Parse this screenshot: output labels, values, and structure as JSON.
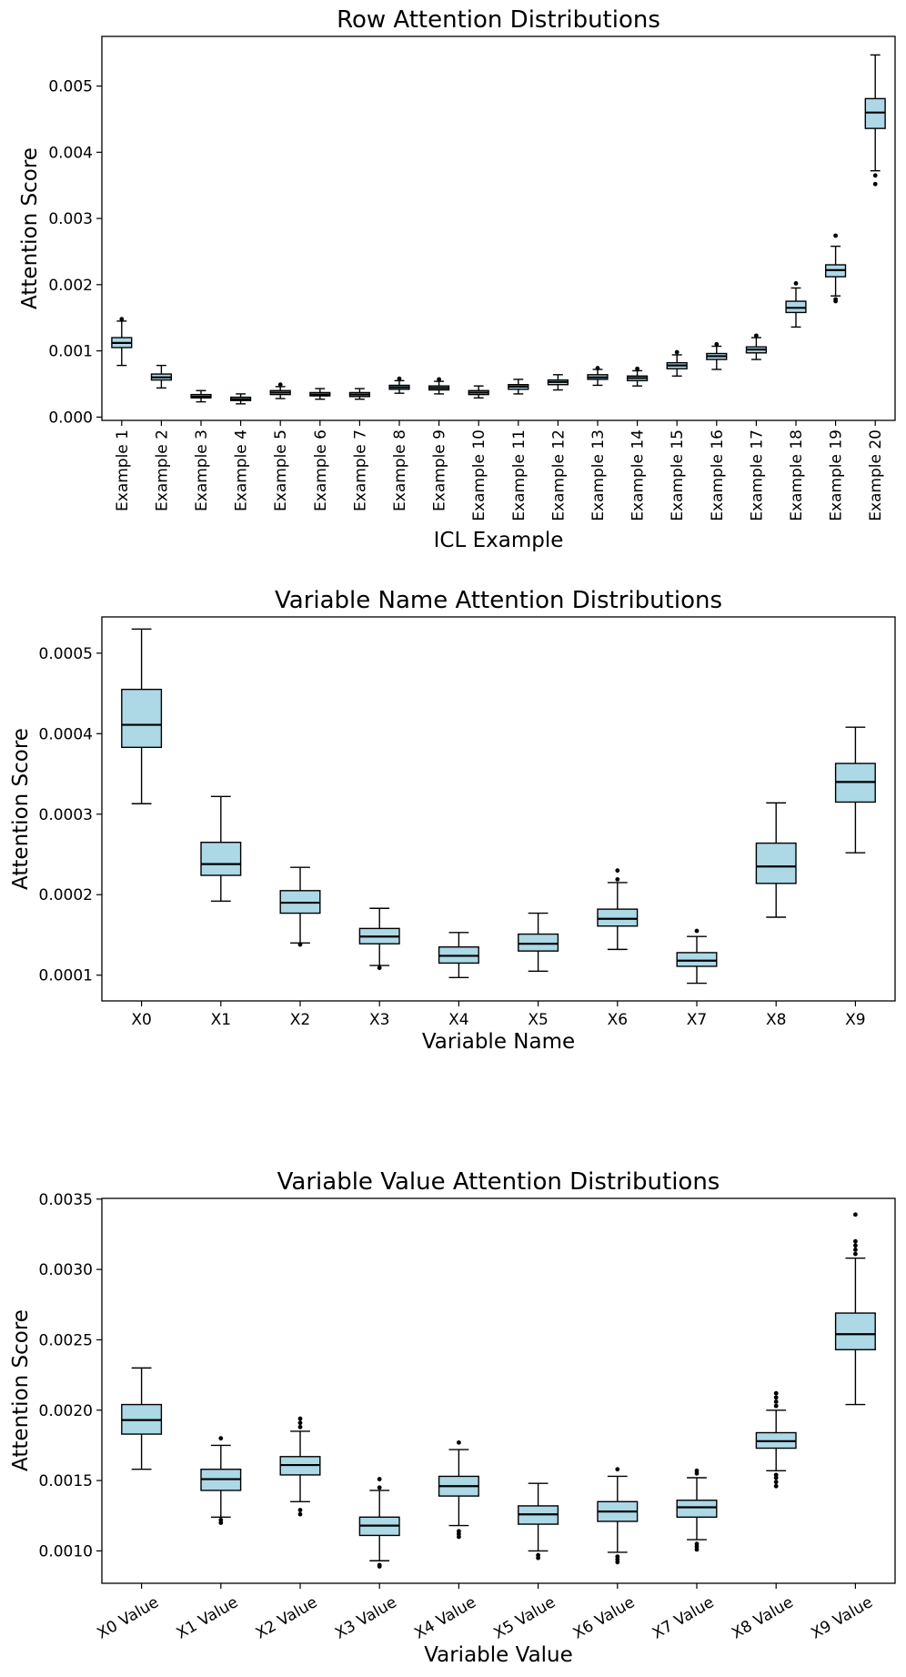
{
  "chart_data": [
    {
      "type": "box",
      "title": "Row Attention Distributions",
      "xlabel": "ICL Example",
      "ylabel": "Attention Score",
      "ylim": [
        -5e-05,
        0.00575
      ],
      "yticks": [
        0.0,
        0.001,
        0.002,
        0.003,
        0.004,
        0.005
      ],
      "ytick_labels": [
        "0.000",
        "0.001",
        "0.002",
        "0.003",
        "0.004",
        "0.005"
      ],
      "xtick_rotation": "vertical",
      "box_color": "#add8e6",
      "categories": [
        "Example 1",
        "Example 2",
        "Example 3",
        "Example 4",
        "Example 5",
        "Example 6",
        "Example 7",
        "Example 8",
        "Example 9",
        "Example 10",
        "Example 11",
        "Example 12",
        "Example 13",
        "Example 14",
        "Example 15",
        "Example 16",
        "Example 17",
        "Example 18",
        "Example 19",
        "Example 20"
      ],
      "boxes": [
        {
          "whislo": 0.00078,
          "q1": 0.00105,
          "med": 0.00112,
          "q3": 0.0012,
          "whishi": 0.00145,
          "fliers": [
            0.00148
          ]
        },
        {
          "whislo": 0.00044,
          "q1": 0.00056,
          "med": 0.0006,
          "q3": 0.00065,
          "whishi": 0.00078,
          "fliers": []
        },
        {
          "whislo": 0.00023,
          "q1": 0.00029,
          "med": 0.00031,
          "q3": 0.00034,
          "whishi": 0.0004,
          "fliers": []
        },
        {
          "whislo": 0.0002,
          "q1": 0.00025,
          "med": 0.00027,
          "q3": 0.0003,
          "whishi": 0.00035,
          "fliers": []
        },
        {
          "whislo": 0.00028,
          "q1": 0.00034,
          "med": 0.00037,
          "q3": 0.0004,
          "whishi": 0.00046,
          "fliers": [
            0.00049
          ]
        },
        {
          "whislo": 0.00027,
          "q1": 0.00032,
          "med": 0.00034,
          "q3": 0.00037,
          "whishi": 0.00043,
          "fliers": []
        },
        {
          "whislo": 0.00027,
          "q1": 0.00031,
          "med": 0.00034,
          "q3": 0.00037,
          "whishi": 0.00043,
          "fliers": []
        },
        {
          "whislo": 0.00036,
          "q1": 0.00042,
          "med": 0.00045,
          "q3": 0.00048,
          "whishi": 0.00055,
          "fliers": [
            0.00058
          ]
        },
        {
          "whislo": 0.00035,
          "q1": 0.00041,
          "med": 0.00044,
          "q3": 0.00047,
          "whishi": 0.00054,
          "fliers": [
            0.00057
          ]
        },
        {
          "whislo": 0.00029,
          "q1": 0.00034,
          "med": 0.00037,
          "q3": 0.0004,
          "whishi": 0.00047,
          "fliers": []
        },
        {
          "whislo": 0.00035,
          "q1": 0.00042,
          "med": 0.00046,
          "q3": 0.00049,
          "whishi": 0.00057,
          "fliers": []
        },
        {
          "whislo": 0.00041,
          "q1": 0.00049,
          "med": 0.00053,
          "q3": 0.00056,
          "whishi": 0.00064,
          "fliers": []
        },
        {
          "whislo": 0.00048,
          "q1": 0.00057,
          "med": 0.0006,
          "q3": 0.00064,
          "whishi": 0.00072,
          "fliers": [
            0.00074
          ]
        },
        {
          "whislo": 0.00047,
          "q1": 0.00055,
          "med": 0.00059,
          "q3": 0.00062,
          "whishi": 0.0007,
          "fliers": [
            0.00073
          ]
        },
        {
          "whislo": 0.00062,
          "q1": 0.00073,
          "med": 0.00078,
          "q3": 0.00082,
          "whishi": 0.00094,
          "fliers": [
            0.00098
          ]
        },
        {
          "whislo": 0.00072,
          "q1": 0.00087,
          "med": 0.00092,
          "q3": 0.00096,
          "whishi": 0.00107,
          "fliers": [
            0.0011
          ]
        },
        {
          "whislo": 0.00087,
          "q1": 0.00097,
          "med": 0.00102,
          "q3": 0.00106,
          "whishi": 0.0012,
          "fliers": [
            0.00123
          ]
        },
        {
          "whislo": 0.00136,
          "q1": 0.00158,
          "med": 0.00165,
          "q3": 0.00175,
          "whishi": 0.00195,
          "fliers": [
            0.00202
          ]
        },
        {
          "whislo": 0.00183,
          "q1": 0.00212,
          "med": 0.00222,
          "q3": 0.0023,
          "whishi": 0.00258,
          "fliers": [
            0.00175,
            0.00178,
            0.00274
          ]
        },
        {
          "whislo": 0.00372,
          "q1": 0.00436,
          "med": 0.0046,
          "q3": 0.00481,
          "whishi": 0.00547,
          "fliers": [
            0.00365,
            0.00352
          ]
        }
      ]
    },
    {
      "type": "box",
      "title": "Variable Name Attention Distributions",
      "xlabel": "Variable Name",
      "ylabel": "Attention Score",
      "ylim": [
        6.8e-05,
        0.000545
      ],
      "yticks": [
        0.0001,
        0.0002,
        0.0003,
        0.0004,
        0.0005
      ],
      "ytick_labels": [
        "0.0001",
        "0.0002",
        "0.0003",
        "0.0004",
        "0.0005"
      ],
      "xtick_rotation": "none",
      "box_color": "#add8e6",
      "categories": [
        "X0",
        "X1",
        "X2",
        "X3",
        "X4",
        "X5",
        "X6",
        "X7",
        "X8",
        "X9"
      ],
      "boxes": [
        {
          "whislo": 0.000313,
          "q1": 0.000383,
          "med": 0.000411,
          "q3": 0.000455,
          "whishi": 0.00053,
          "fliers": []
        },
        {
          "whislo": 0.000192,
          "q1": 0.000224,
          "med": 0.000238,
          "q3": 0.000265,
          "whishi": 0.000322,
          "fliers": []
        },
        {
          "whislo": 0.00014,
          "q1": 0.000177,
          "med": 0.00019,
          "q3": 0.000205,
          "whishi": 0.000234,
          "fliers": [
            0.000138
          ]
        },
        {
          "whislo": 0.000112,
          "q1": 0.000139,
          "med": 0.000148,
          "q3": 0.000158,
          "whishi": 0.000183,
          "fliers": [
            0.000109
          ]
        },
        {
          "whislo": 9.7e-05,
          "q1": 0.000115,
          "med": 0.000124,
          "q3": 0.000135,
          "whishi": 0.000153,
          "fliers": []
        },
        {
          "whislo": 0.000105,
          "q1": 0.00013,
          "med": 0.000139,
          "q3": 0.000151,
          "whishi": 0.000177,
          "fliers": []
        },
        {
          "whislo": 0.000132,
          "q1": 0.000161,
          "med": 0.00017,
          "q3": 0.000182,
          "whishi": 0.000215,
          "fliers": [
            0.000219,
            0.00023
          ]
        },
        {
          "whislo": 9e-05,
          "q1": 0.000111,
          "med": 0.000118,
          "q3": 0.000128,
          "whishi": 0.000148,
          "fliers": [
            0.000155
          ]
        },
        {
          "whislo": 0.000172,
          "q1": 0.000214,
          "med": 0.000235,
          "q3": 0.000264,
          "whishi": 0.000314,
          "fliers": []
        },
        {
          "whislo": 0.000252,
          "q1": 0.000315,
          "med": 0.00034,
          "q3": 0.000363,
          "whishi": 0.000408,
          "fliers": []
        }
      ]
    },
    {
      "type": "box",
      "title": "Variable Value Attention Distributions",
      "xlabel": "Variable Value",
      "ylabel": "Attention Score",
      "ylim": [
        0.00077,
        0.003505
      ],
      "yticks": [
        0.001,
        0.0015,
        0.002,
        0.0025,
        0.003,
        0.0035
      ],
      "ytick_labels": [
        "0.0010",
        "0.0015",
        "0.0020",
        "0.0025",
        "0.0030",
        "0.0035"
      ],
      "xtick_rotation": "30deg",
      "box_color": "#add8e6",
      "categories": [
        "X0 Value",
        "X1 Value",
        "X2 Value",
        "X3 Value",
        "X4 Value",
        "X5 Value",
        "X6 Value",
        "X7 Value",
        "X8 Value",
        "X9 Value"
      ],
      "boxes": [
        {
          "whislo": 0.00158,
          "q1": 0.00183,
          "med": 0.00193,
          "q3": 0.00204,
          "whishi": 0.0023,
          "fliers": []
        },
        {
          "whislo": 0.00124,
          "q1": 0.00143,
          "med": 0.00151,
          "q3": 0.00158,
          "whishi": 0.00175,
          "fliers": [
            0.0012,
            0.00122,
            0.0018
          ]
        },
        {
          "whislo": 0.00135,
          "q1": 0.00154,
          "med": 0.00161,
          "q3": 0.00167,
          "whishi": 0.00185,
          "fliers": [
            0.00126,
            0.00129,
            0.00188,
            0.00191,
            0.00194
          ]
        },
        {
          "whislo": 0.00093,
          "q1": 0.00111,
          "med": 0.00118,
          "q3": 0.00124,
          "whishi": 0.00143,
          "fliers": [
            0.00089,
            0.0009,
            0.00145,
            0.00151
          ]
        },
        {
          "whislo": 0.00118,
          "q1": 0.00139,
          "med": 0.00146,
          "q3": 0.00153,
          "whishi": 0.00172,
          "fliers": [
            0.0011,
            0.00112,
            0.00114,
            0.00177
          ]
        },
        {
          "whislo": 0.001,
          "q1": 0.00119,
          "med": 0.00126,
          "q3": 0.00132,
          "whishi": 0.00148,
          "fliers": [
            0.00095,
            0.00097
          ]
        },
        {
          "whislo": 0.00099,
          "q1": 0.00121,
          "med": 0.00128,
          "q3": 0.00135,
          "whishi": 0.00153,
          "fliers": [
            0.00092,
            0.00094,
            0.00096,
            0.00158
          ]
        },
        {
          "whislo": 0.00108,
          "q1": 0.00124,
          "med": 0.00131,
          "q3": 0.00136,
          "whishi": 0.00152,
          "fliers": [
            0.00101,
            0.00103,
            0.00105,
            0.00155,
            0.00157
          ]
        },
        {
          "whislo": 0.00157,
          "q1": 0.00173,
          "med": 0.00178,
          "q3": 0.00184,
          "whishi": 0.002,
          "fliers": [
            0.00146,
            0.00149,
            0.00152,
            0.00154,
            0.00203,
            0.00206,
            0.00209,
            0.00212
          ]
        },
        {
          "whislo": 0.00204,
          "q1": 0.00243,
          "med": 0.00254,
          "q3": 0.00269,
          "whishi": 0.00308,
          "fliers": [
            0.00311,
            0.00314,
            0.00317,
            0.0032,
            0.00339
          ]
        }
      ]
    }
  ]
}
